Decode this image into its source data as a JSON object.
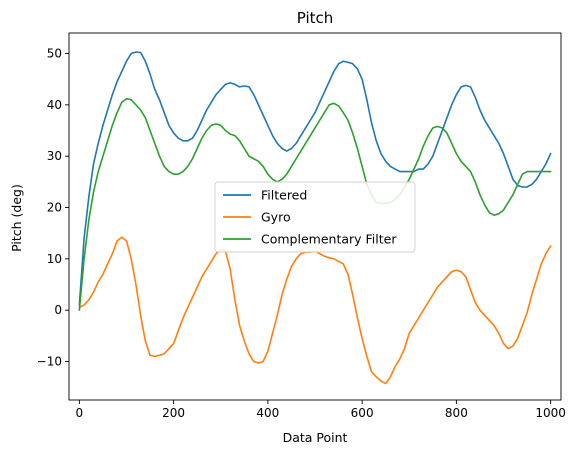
{
  "chart_data": {
    "type": "line",
    "title": "Pitch",
    "xlabel": "Data Point",
    "ylabel": "Pitch (deg)",
    "xlim": [
      -22,
      1022
    ],
    "ylim": [
      -17.5,
      54
    ],
    "xticks": [
      0,
      200,
      400,
      600,
      800,
      1000
    ],
    "yticks": [
      -10,
      0,
      10,
      20,
      30,
      40,
      50
    ],
    "grid": false,
    "legend_position": "center",
    "series": [
      {
        "name": "Filtered",
        "color": "#1f77b4",
        "x": [
          0,
          10,
          20,
          30,
          40,
          50,
          60,
          70,
          80,
          90,
          100,
          110,
          120,
          130,
          140,
          150,
          160,
          170,
          180,
          190,
          200,
          210,
          220,
          230,
          240,
          250,
          260,
          270,
          280,
          290,
          300,
          310,
          320,
          330,
          340,
          350,
          360,
          370,
          380,
          390,
          400,
          410,
          420,
          430,
          440,
          450,
          460,
          470,
          480,
          490,
          500,
          510,
          520,
          530,
          540,
          550,
          560,
          570,
          580,
          590,
          600,
          610,
          620,
          630,
          640,
          650,
          660,
          670,
          680,
          690,
          700,
          710,
          720,
          730,
          740,
          750,
          760,
          770,
          780,
          790,
          800,
          810,
          820,
          830,
          840,
          850,
          860,
          870,
          880,
          890,
          900,
          910,
          920,
          930,
          940,
          950,
          960,
          970,
          980,
          990,
          1000
        ],
        "values": [
          1.0,
          14.0,
          22.0,
          28.5,
          32.5,
          36.0,
          39.0,
          42.0,
          44.5,
          46.5,
          48.5,
          50.0,
          50.3,
          50.2,
          48.5,
          46.0,
          43.0,
          41.0,
          38.5,
          36.0,
          34.5,
          33.5,
          33.0,
          33.0,
          33.5,
          35.0,
          37.0,
          39.0,
          40.5,
          42.0,
          43.0,
          44.0,
          44.3,
          44.0,
          43.5,
          43.7,
          43.5,
          42.0,
          40.0,
          38.0,
          36.0,
          34.0,
          32.5,
          31.5,
          31.0,
          31.5,
          32.5,
          34.0,
          35.5,
          37.0,
          38.5,
          40.5,
          42.5,
          44.5,
          46.5,
          48.0,
          48.5,
          48.3,
          48.0,
          47.0,
          45.0,
          41.0,
          36.5,
          33.0,
          30.5,
          29.0,
          28.0,
          27.5,
          27.0,
          27.0,
          27.0,
          27.0,
          27.5,
          27.5,
          28.5,
          30.0,
          32.5,
          35.0,
          37.5,
          40.0,
          42.0,
          43.5,
          43.8,
          43.5,
          41.5,
          39.0,
          37.0,
          35.5,
          34.0,
          32.5,
          30.5,
          28.0,
          25.5,
          24.3,
          24.0,
          24.0,
          24.5,
          25.5,
          27.0,
          28.5,
          30.5
        ]
      },
      {
        "name": "Gyro",
        "color": "#ff7f0e",
        "x": [
          0,
          10,
          20,
          30,
          40,
          50,
          60,
          70,
          80,
          90,
          100,
          110,
          120,
          130,
          140,
          150,
          160,
          170,
          180,
          190,
          200,
          210,
          220,
          230,
          240,
          250,
          260,
          270,
          280,
          290,
          300,
          310,
          320,
          330,
          340,
          350,
          360,
          370,
          380,
          390,
          400,
          410,
          420,
          430,
          440,
          450,
          460,
          470,
          480,
          490,
          500,
          510,
          520,
          530,
          540,
          550,
          560,
          570,
          580,
          590,
          600,
          610,
          620,
          630,
          640,
          650,
          660,
          670,
          680,
          690,
          700,
          710,
          720,
          730,
          740,
          750,
          760,
          770,
          780,
          790,
          800,
          810,
          820,
          830,
          840,
          850,
          860,
          870,
          880,
          890,
          900,
          910,
          920,
          930,
          940,
          950,
          960,
          970,
          980,
          990,
          1000
        ],
        "values": [
          0.5,
          1.0,
          2.0,
          3.5,
          5.5,
          7.0,
          9.0,
          11.0,
          13.5,
          14.2,
          13.5,
          10.0,
          5.0,
          -1.0,
          -6.0,
          -8.8,
          -9.0,
          -8.8,
          -8.5,
          -7.5,
          -6.5,
          -4.0,
          -1.5,
          0.5,
          2.5,
          4.5,
          6.5,
          8.0,
          9.5,
          11.0,
          11.8,
          11.5,
          8.0,
          2.0,
          -3.0,
          -6.0,
          -8.5,
          -10.0,
          -10.3,
          -10.0,
          -8.0,
          -4.5,
          -1.0,
          3.0,
          6.0,
          8.5,
          10.0,
          11.0,
          11.3,
          11.3,
          11.5,
          11.0,
          10.5,
          10.2,
          10.0,
          9.5,
          9.0,
          7.0,
          3.0,
          -1.5,
          -5.5,
          -9.0,
          -12.0,
          -13.0,
          -13.8,
          -14.3,
          -13.0,
          -11.0,
          -9.5,
          -7.5,
          -4.5,
          -3.0,
          -1.5,
          0.0,
          1.5,
          3.0,
          4.5,
          5.5,
          6.5,
          7.5,
          7.8,
          7.5,
          6.5,
          4.0,
          1.5,
          0.0,
          -1.0,
          -2.0,
          -3.0,
          -4.5,
          -6.5,
          -7.5,
          -7.0,
          -5.5,
          -3.0,
          -0.5,
          3.0,
          6.0,
          9.0,
          11.0,
          12.5
        ]
      },
      {
        "name": "Complementary Filter",
        "color": "#2ca02c",
        "x": [
          0,
          10,
          20,
          30,
          40,
          50,
          60,
          70,
          80,
          90,
          100,
          110,
          120,
          130,
          140,
          150,
          160,
          170,
          180,
          190,
          200,
          210,
          220,
          230,
          240,
          250,
          260,
          270,
          280,
          290,
          300,
          310,
          320,
          330,
          340,
          350,
          360,
          370,
          380,
          390,
          400,
          410,
          420,
          430,
          440,
          450,
          460,
          470,
          480,
          490,
          500,
          510,
          520,
          530,
          540,
          550,
          560,
          570,
          580,
          590,
          600,
          610,
          620,
          630,
          640,
          650,
          660,
          670,
          680,
          690,
          700,
          710,
          720,
          730,
          740,
          750,
          760,
          770,
          780,
          790,
          800,
          810,
          820,
          830,
          840,
          850,
          860,
          870,
          880,
          890,
          900,
          910,
          920,
          930,
          940,
          950,
          960,
          970,
          980,
          990,
          1000
        ],
        "values": [
          0.0,
          10.0,
          17.5,
          23.0,
          27.0,
          30.0,
          33.0,
          36.0,
          38.5,
          40.5,
          41.2,
          41.0,
          40.0,
          39.0,
          37.5,
          35.0,
          32.5,
          30.0,
          28.0,
          27.0,
          26.5,
          26.5,
          27.0,
          28.0,
          29.5,
          31.5,
          33.5,
          35.0,
          36.0,
          36.3,
          36.0,
          35.0,
          34.3,
          34.0,
          33.0,
          31.5,
          30.0,
          29.5,
          29.0,
          28.0,
          26.5,
          25.5,
          25.0,
          25.5,
          26.5,
          28.0,
          29.5,
          31.0,
          32.5,
          34.0,
          35.5,
          37.0,
          38.5,
          40.0,
          40.3,
          39.8,
          38.5,
          37.0,
          34.5,
          31.5,
          28.0,
          24.5,
          22.5,
          21.0,
          20.8,
          20.8,
          21.0,
          21.5,
          22.5,
          24.0,
          25.5,
          27.5,
          29.5,
          32.0,
          34.0,
          35.5,
          35.8,
          35.5,
          34.5,
          32.5,
          30.5,
          29.0,
          28.0,
          27.0,
          25.0,
          22.5,
          20.5,
          19.0,
          18.5,
          18.8,
          19.5,
          21.0,
          22.5,
          24.5,
          26.5,
          27.0,
          27.0,
          27.0,
          27.0,
          27.0,
          27.0
        ]
      }
    ]
  }
}
